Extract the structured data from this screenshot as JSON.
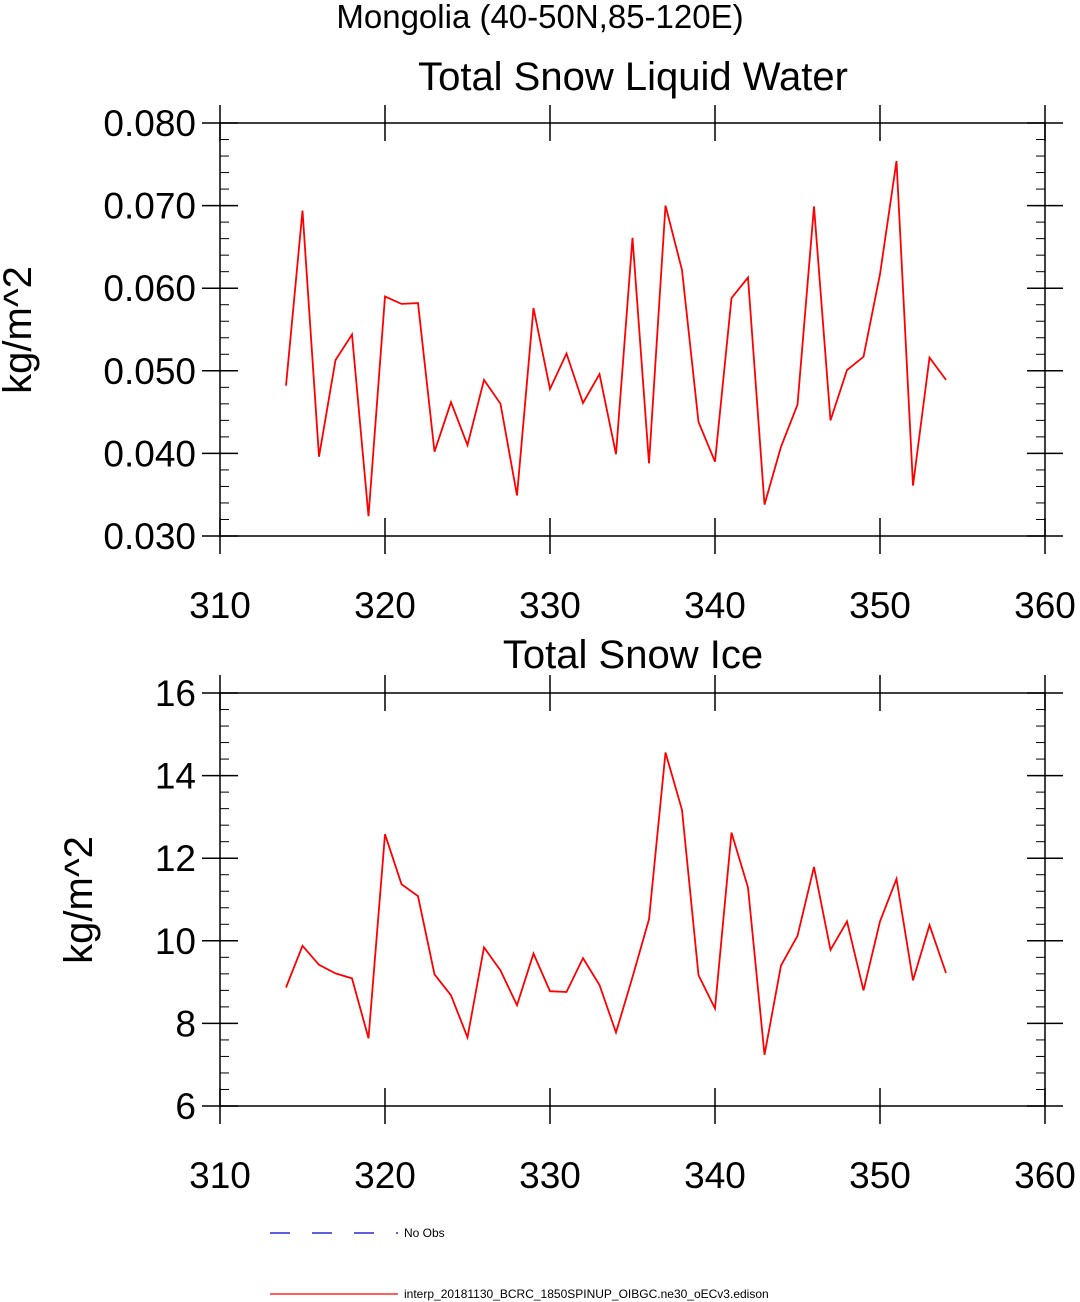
{
  "figure": {
    "suptitle": "Mongolia (40-50N,85-120E)"
  },
  "legend": {
    "items": [
      {
        "label": "No Obs",
        "color": "#0000cc",
        "style": "dashed"
      },
      {
        "label": "interp_20181130_BCRC_1850SPINUP_OIBGC.ne30_oECv3.edison",
        "color": "#ff0000",
        "style": "solid"
      }
    ]
  },
  "chart_data": [
    {
      "type": "line",
      "title": "Total Snow Liquid Water",
      "ylabel": "kg/m^2",
      "xlabel": "",
      "xlim": [
        310,
        360
      ],
      "ylim": [
        0.03,
        0.08
      ],
      "xticks": [
        310,
        320,
        330,
        340,
        350,
        360
      ],
      "xtick_labels": [
        "310",
        "320",
        "330",
        "340",
        "350",
        "360"
      ],
      "yticks": [
        0.03,
        0.04,
        0.05,
        0.06,
        0.07,
        0.08
      ],
      "ytick_labels": [
        "0.030",
        "0.040",
        "0.050",
        "0.060",
        "0.070",
        "0.080"
      ],
      "grid": false,
      "series": [
        {
          "name": "interp_20181130_BCRC_1850SPINUP_OIBGC.ne30_oECv3.edison",
          "color": "#ff0000",
          "x": [
            314,
            315,
            316,
            317,
            318,
            319,
            320,
            321,
            322,
            323,
            324,
            325,
            326,
            327,
            328,
            329,
            330,
            331,
            332,
            333,
            334,
            335,
            336,
            337,
            338,
            339,
            340,
            341,
            342,
            343,
            344,
            345,
            346,
            347,
            348,
            349,
            350,
            351,
            352,
            353,
            354
          ],
          "y": [
            0.0482,
            0.0694,
            0.0396,
            0.0513,
            0.0544,
            0.0324,
            0.059,
            0.0581,
            0.0582,
            0.0402,
            0.0462,
            0.041,
            0.0489,
            0.046,
            0.0349,
            0.0576,
            0.0478,
            0.0521,
            0.0461,
            0.0496,
            0.0399,
            0.0661,
            0.0388,
            0.07,
            0.0622,
            0.0438,
            0.039,
            0.0588,
            0.0613,
            0.0338,
            0.0408,
            0.0459,
            0.0699,
            0.044,
            0.0501,
            0.0517,
            0.0617,
            0.0754,
            0.0361,
            0.0516,
            0.0489
          ]
        }
      ]
    },
    {
      "type": "line",
      "title": "Total Snow Ice",
      "ylabel": "kg/m^2",
      "xlabel": "",
      "xlim": [
        310,
        360
      ],
      "ylim": [
        6,
        16
      ],
      "xticks": [
        310,
        320,
        330,
        340,
        350,
        360
      ],
      "xtick_labels": [
        "310",
        "320",
        "330",
        "340",
        "350",
        "360"
      ],
      "yticks": [
        6,
        8,
        10,
        12,
        14,
        16
      ],
      "ytick_labels": [
        "6",
        "8",
        "10",
        "12",
        "14",
        "16"
      ],
      "grid": false,
      "series": [
        {
          "name": "interp_20181130_BCRC_1850SPINUP_OIBGC.ne30_oECv3.edison",
          "color": "#ff0000",
          "x": [
            314,
            315,
            316,
            317,
            318,
            319,
            320,
            321,
            322,
            323,
            324,
            325,
            326,
            327,
            328,
            329,
            330,
            331,
            332,
            333,
            334,
            335,
            336,
            337,
            338,
            339,
            340,
            341,
            342,
            343,
            344,
            345,
            346,
            347,
            348,
            349,
            350,
            351,
            352,
            353,
            354
          ],
          "y": [
            8.87,
            9.88,
            9.42,
            9.21,
            9.09,
            7.64,
            12.58,
            11.37,
            11.08,
            9.19,
            8.68,
            7.66,
            9.84,
            9.28,
            8.44,
            9.69,
            8.78,
            8.76,
            9.58,
            8.93,
            7.78,
            9.12,
            10.52,
            14.56,
            13.17,
            9.17,
            8.36,
            12.62,
            11.29,
            7.24,
            9.4,
            10.12,
            11.79,
            9.78,
            10.47,
            8.8,
            10.47,
            11.5,
            9.04,
            10.38,
            9.22
          ]
        }
      ]
    }
  ]
}
